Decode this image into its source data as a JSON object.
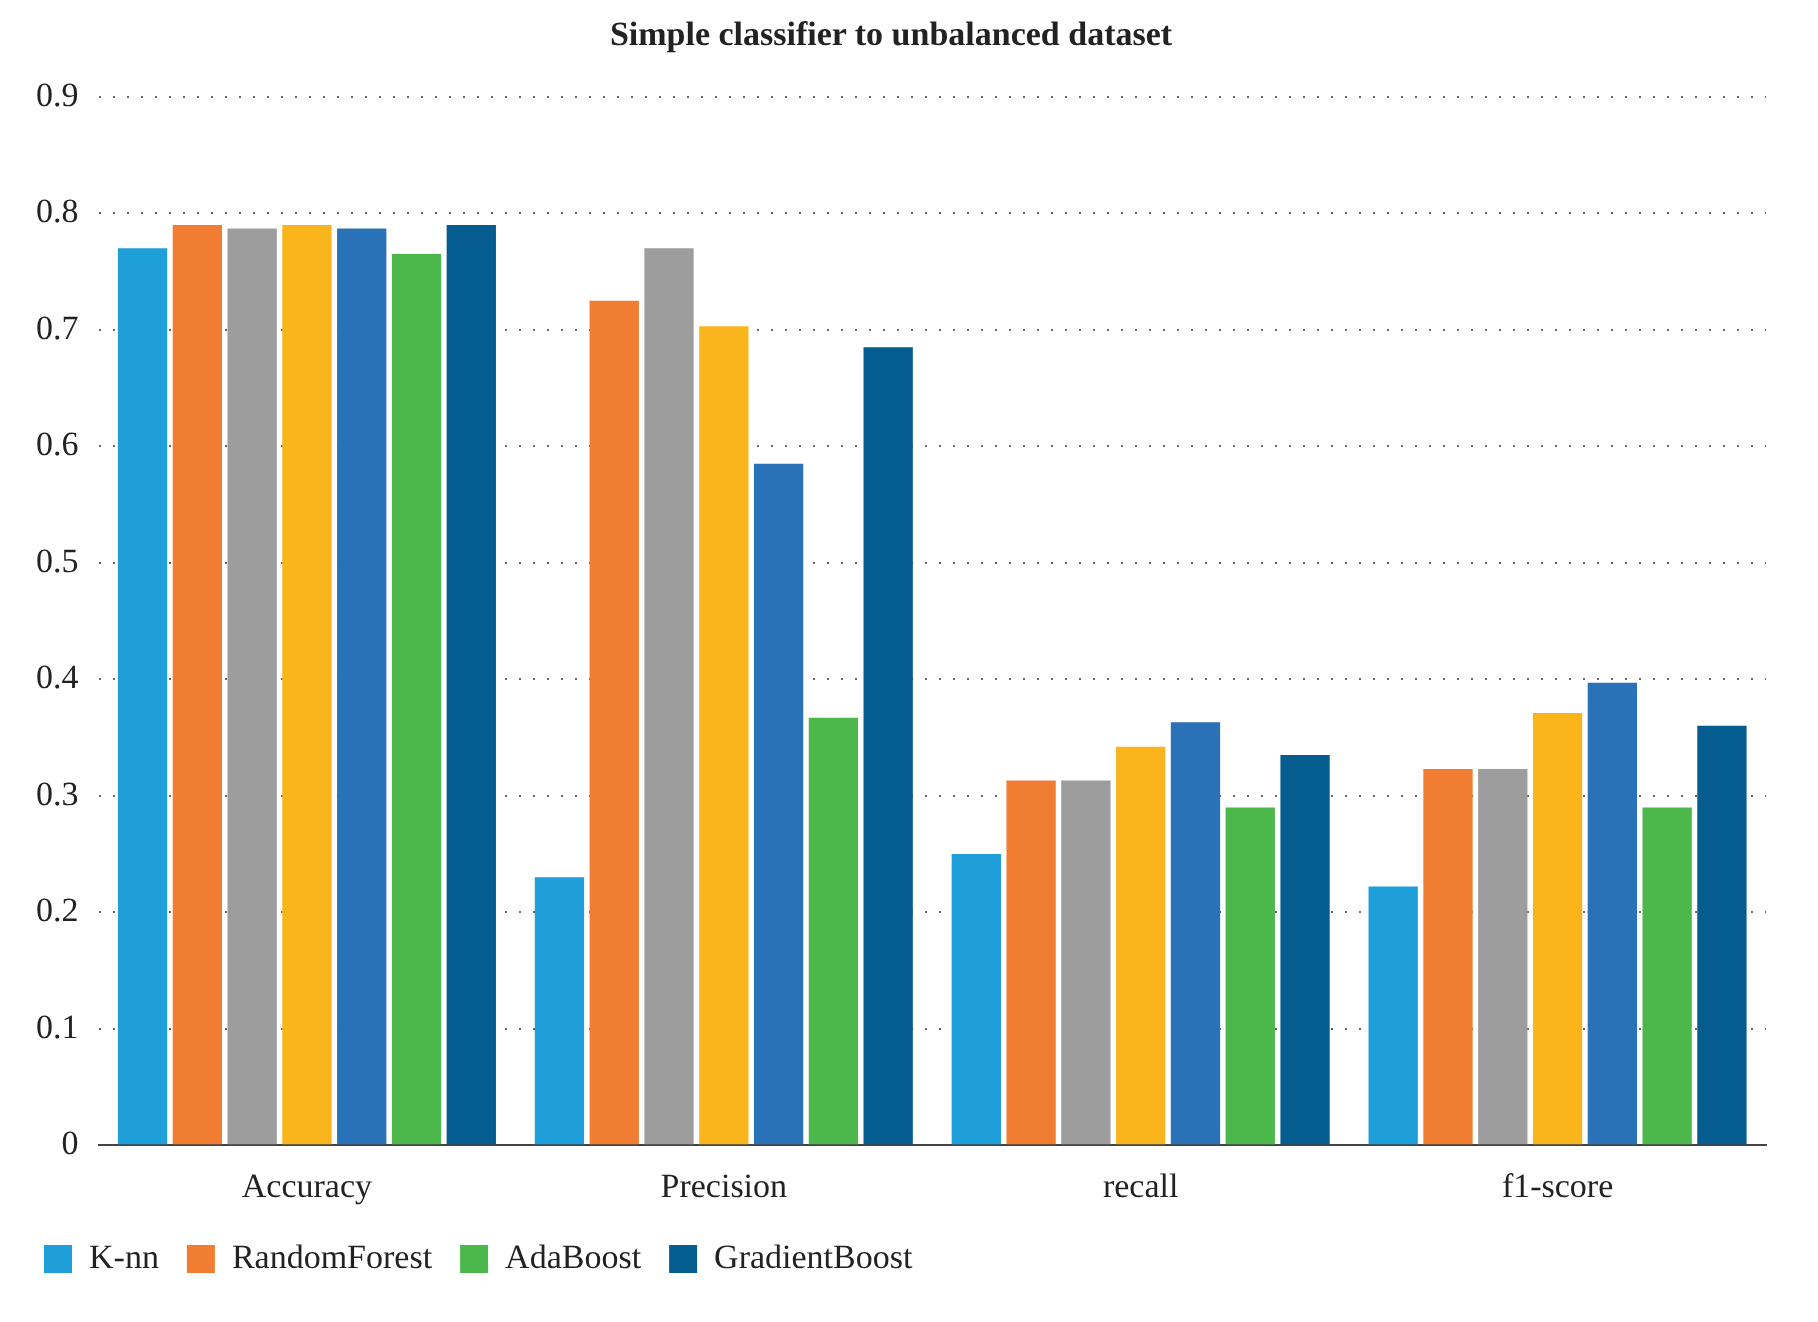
{
  "chart_data": {
    "type": "bar",
    "title": "Simple classifier to unbalanced dataset",
    "categories": [
      "Accuracy",
      "Precision",
      "recall",
      "f1-score"
    ],
    "series": [
      {
        "name": "K-nn",
        "color": "#1f9fd9",
        "values": [
          0.77,
          0.23,
          0.25,
          0.222
        ]
      },
      {
        "name": "RandomForest",
        "color": "#f07d32",
        "values": [
          0.79,
          0.725,
          0.313,
          0.323
        ]
      },
      {
        "color": "#9d9d9d",
        "values": [
          0.787,
          0.77,
          0.313,
          0.323
        ]
      },
      {
        "color": "#fbb51c",
        "values": [
          0.79,
          0.703,
          0.342,
          0.371
        ]
      },
      {
        "color": "#2a72b8",
        "values": [
          0.787,
          0.585,
          0.363,
          0.397
        ]
      },
      {
        "name": "AdaBoost",
        "color": "#4cb84c",
        "values": [
          0.765,
          0.367,
          0.29,
          0.29
        ]
      },
      {
        "name": "GradientBoost",
        "color": "#045d8e",
        "values": [
          0.79,
          0.685,
          0.335,
          0.36
        ]
      }
    ],
    "ylim": [
      0,
      0.9
    ],
    "yticks": [
      0,
      0.1,
      0.2,
      0.3,
      0.4,
      0.5,
      0.6,
      0.7,
      0.8,
      0.9
    ],
    "grid": "y",
    "legend": "bottom"
  }
}
